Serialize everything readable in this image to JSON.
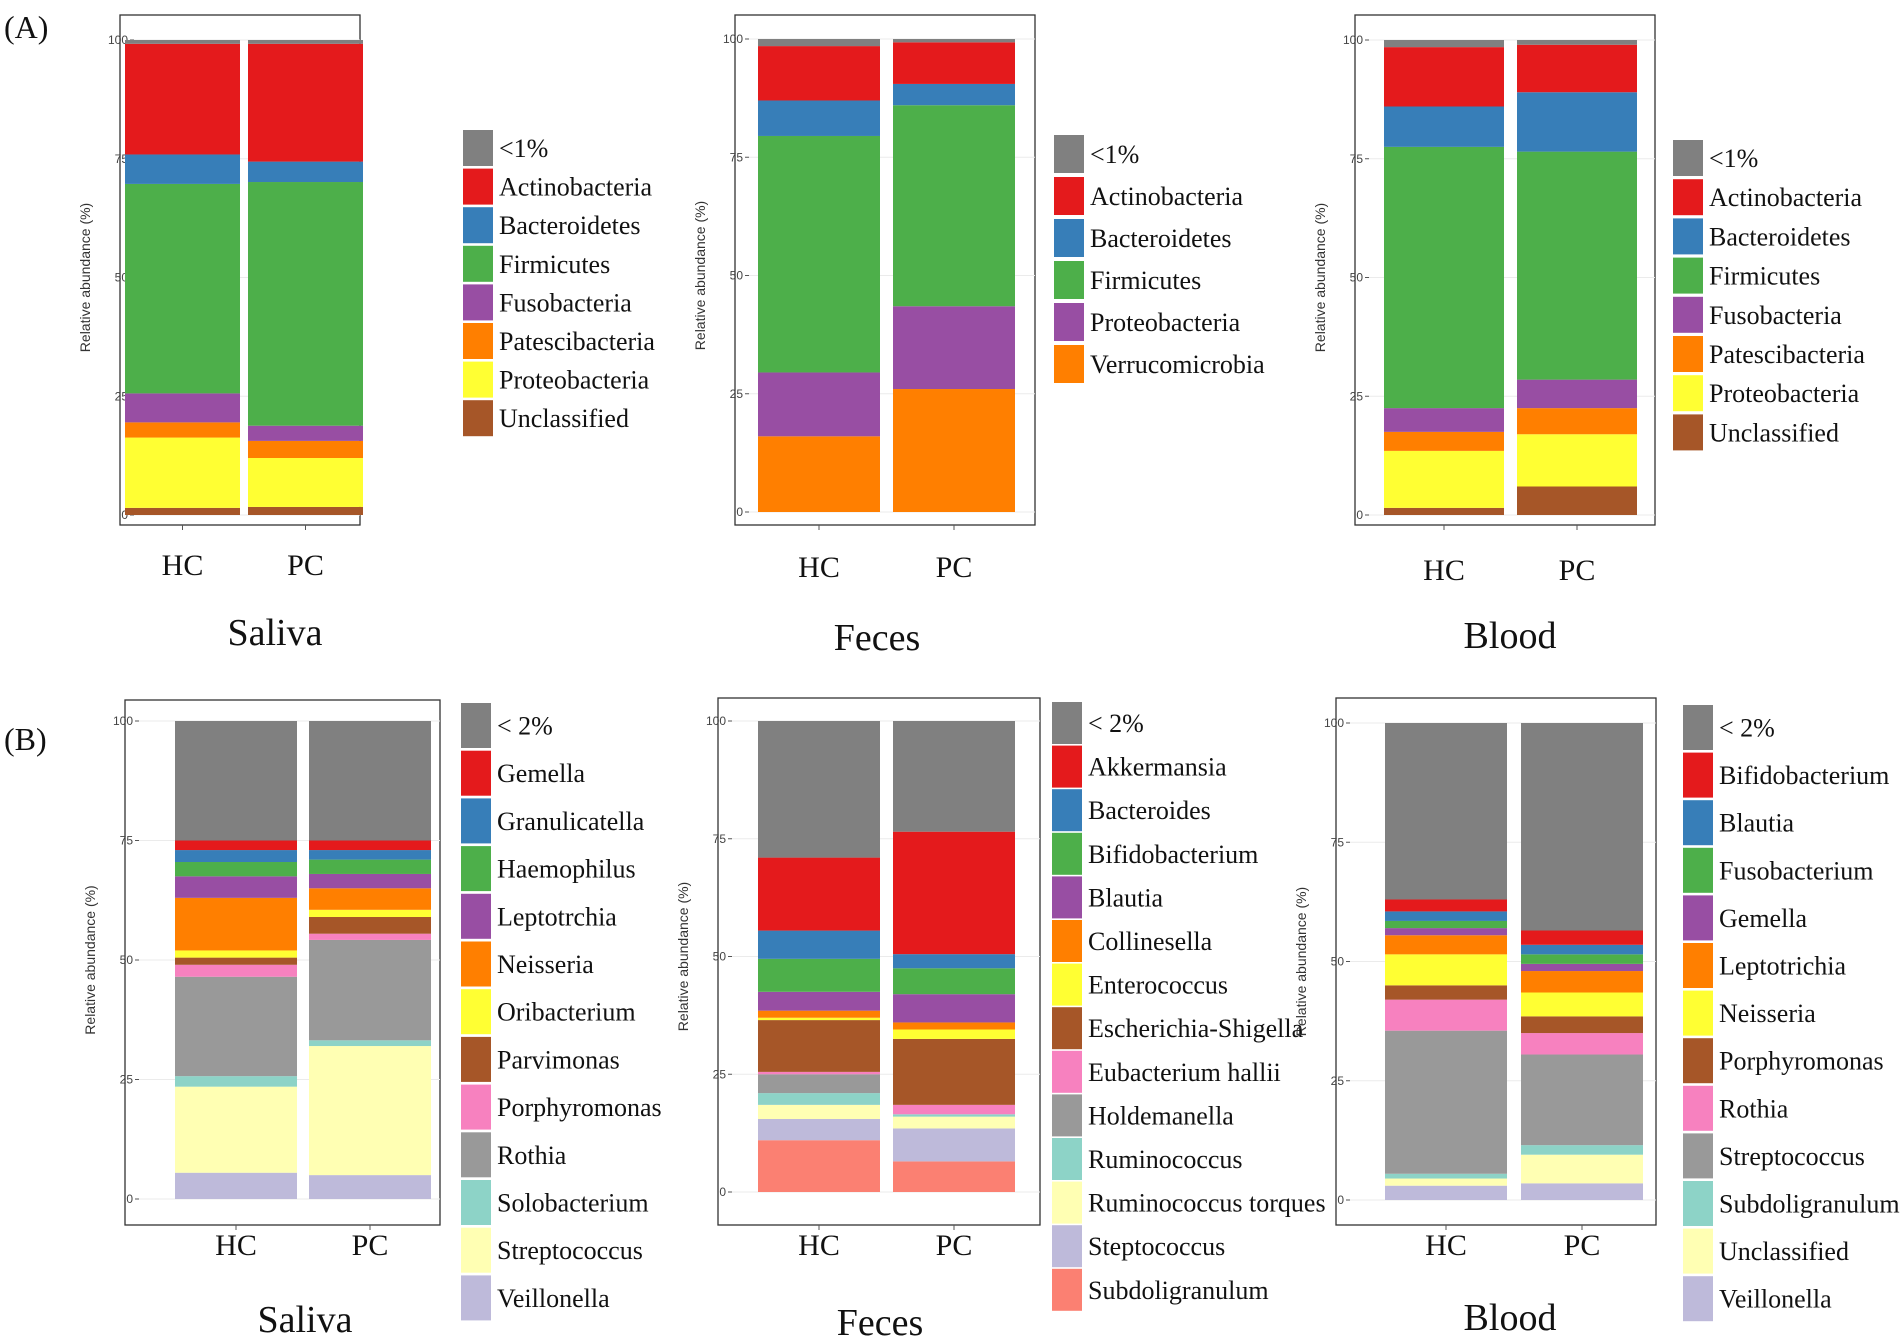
{
  "panel_labels": [
    "(A)",
    "(B)"
  ],
  "chart_data": [
    {
      "type": "bar",
      "stacked": true,
      "row": "A",
      "title": "Saliva",
      "ylabel": "Relative abundance (%)",
      "categories": [
        "HC",
        "PC"
      ],
      "yticks": [
        0,
        25,
        50,
        75,
        100
      ],
      "ylim": [
        0,
        100
      ],
      "series": [
        {
          "name": "Unclassified",
          "color": "#a65628",
          "values": [
            1.5,
            1.7
          ]
        },
        {
          "name": "Proteobacteria",
          "color": "#ffff33",
          "values": [
            14.8,
            10.3
          ]
        },
        {
          "name": "Patescibacteria",
          "color": "#ff7f00",
          "values": [
            3.2,
            3.6
          ]
        },
        {
          "name": "Fusobacteria",
          "color": "#984ea3",
          "values": [
            6.1,
            3.2
          ]
        },
        {
          "name": "Firmicutes",
          "color": "#4daf4a",
          "values": [
            44.1,
            51.3
          ]
        },
        {
          "name": "Bacteroidetes",
          "color": "#377eb8",
          "values": [
            6.2,
            4.3
          ]
        },
        {
          "name": "Actinobacteria",
          "color": "#e41a1c",
          "values": [
            23.3,
            24.8
          ]
        },
        {
          "name": "<1%",
          "color": "#808080",
          "values": [
            0.8,
            0.8
          ]
        }
      ],
      "legend": [
        "<1%",
        "Actinobacteria",
        "Bacteroidetes",
        "Firmicutes",
        "Fusobacteria",
        "Patescibacteria",
        "Proteobacteria",
        "Unclassified"
      ]
    },
    {
      "type": "bar",
      "stacked": true,
      "row": "A",
      "title": "Feces",
      "ylabel": "Relative abundance (%)",
      "categories": [
        "HC",
        "PC"
      ],
      "yticks": [
        0,
        25,
        50,
        75,
        100
      ],
      "ylim": [
        0,
        100
      ],
      "series": [
        {
          "name": "Verrucomicrobia",
          "color": "#ff7f00",
          "values": [
            16.0,
            26.0
          ]
        },
        {
          "name": "Proteobacteria",
          "color": "#984ea3",
          "values": [
            13.5,
            17.5
          ]
        },
        {
          "name": "Firmicutes",
          "color": "#4daf4a",
          "values": [
            50.0,
            42.5
          ]
        },
        {
          "name": "Bacteroidetes",
          "color": "#377eb8",
          "values": [
            7.5,
            4.5
          ]
        },
        {
          "name": "Actinobacteria",
          "color": "#e41a1c",
          "values": [
            11.5,
            8.8
          ]
        },
        {
          "name": "<1%",
          "color": "#808080",
          "values": [
            1.5,
            0.7
          ]
        }
      ],
      "legend": [
        "<1%",
        "Actinobacteria",
        "Bacteroidetes",
        "Firmicutes",
        "Proteobacteria",
        "Verrucomicrobia"
      ]
    },
    {
      "type": "bar",
      "stacked": true,
      "row": "A",
      "title": "Blood",
      "ylabel": "Relative abundance (%)",
      "categories": [
        "HC",
        "PC"
      ],
      "yticks": [
        0,
        25,
        50,
        75,
        100
      ],
      "ylim": [
        0,
        100
      ],
      "series": [
        {
          "name": "Unclassified",
          "color": "#a65628",
          "values": [
            1.5,
            6.0
          ]
        },
        {
          "name": "Proteobacteria",
          "color": "#ffff33",
          "values": [
            12.0,
            11.0
          ]
        },
        {
          "name": "Patescibacteria",
          "color": "#ff7f00",
          "values": [
            4.0,
            5.5
          ]
        },
        {
          "name": "Fusobacteria",
          "color": "#984ea3",
          "values": [
            5.0,
            6.0
          ]
        },
        {
          "name": "Firmicutes",
          "color": "#4daf4a",
          "values": [
            55.0,
            48.0
          ]
        },
        {
          "name": "Bacteroidetes",
          "color": "#377eb8",
          "values": [
            8.5,
            12.5
          ]
        },
        {
          "name": "Actinobacteria",
          "color": "#e41a1c",
          "values": [
            12.5,
            10.0
          ]
        },
        {
          "name": "<1%",
          "color": "#808080",
          "values": [
            1.5,
            1.0
          ]
        }
      ],
      "legend": [
        "<1%",
        "Actinobacteria",
        "Bacteroidetes",
        "Firmicutes",
        "Fusobacteria",
        "Patescibacteria",
        "Proteobacteria",
        "Unclassified"
      ]
    },
    {
      "type": "bar",
      "stacked": true,
      "row": "B",
      "title": "Saliva",
      "ylabel": "Relative abundance (%)",
      "categories": [
        "HC",
        "PC"
      ],
      "yticks": [
        0,
        25,
        50,
        75,
        100
      ],
      "ylim": [
        0,
        100
      ],
      "series": [
        {
          "name": "Veillonella",
          "color": "#bebada",
          "values": [
            5.5,
            5.0
          ]
        },
        {
          "name": "Streptococcus",
          "color": "#ffffb3",
          "values": [
            18.0,
            27.0
          ]
        },
        {
          "name": "Solobacterium",
          "color": "#8dd3c7",
          "values": [
            2.2,
            1.2
          ]
        },
        {
          "name": "Rothia",
          "color": "#999999",
          "values": [
            20.8,
            21.0
          ]
        },
        {
          "name": "Porphyromonas",
          "color": "#f781bf",
          "values": [
            2.5,
            1.3
          ]
        },
        {
          "name": "Parvimonas",
          "color": "#a65628",
          "values": [
            1.5,
            3.5
          ]
        },
        {
          "name": "Oribacterium",
          "color": "#ffff33",
          "values": [
            1.5,
            1.5
          ]
        },
        {
          "name": "Neisseria",
          "color": "#ff7f00",
          "values": [
            11.0,
            4.5
          ]
        },
        {
          "name": "Leptotrchia",
          "color": "#984ea3",
          "values": [
            4.5,
            3.0
          ]
        },
        {
          "name": "Haemophilus",
          "color": "#4daf4a",
          "values": [
            3.0,
            3.0
          ]
        },
        {
          "name": "Granulicatella",
          "color": "#377eb8",
          "values": [
            2.5,
            2.0
          ]
        },
        {
          "name": "Gemella",
          "color": "#e41a1c",
          "values": [
            2.0,
            2.0
          ]
        },
        {
          "name": "< 2%",
          "color": "#808080",
          "values": [
            25.0,
            25.0
          ]
        }
      ],
      "legend": [
        "< 2%",
        "Gemella",
        "Granulicatella",
        "Haemophilus",
        "Leptotrchia",
        "Neisseria",
        "Oribacterium",
        "Parvimonas",
        "Porphyromonas",
        "Rothia",
        "Solobacterium",
        "Streptococcus",
        "Veillonella"
      ]
    },
    {
      "type": "bar",
      "stacked": true,
      "row": "B",
      "title": "Feces",
      "ylabel": "Relative abundance (%)",
      "categories": [
        "HC",
        "PC"
      ],
      "yticks": [
        0,
        25,
        50,
        75,
        100
      ],
      "ylim": [
        0,
        100
      ],
      "series": [
        {
          "name": "Subdoligranulum",
          "color": "#fb8072",
          "values": [
            11.0,
            6.5
          ]
        },
        {
          "name": "Steptococcus",
          "color": "#bebada",
          "values": [
            4.5,
            7.0
          ]
        },
        {
          "name": "Ruminococcus torques",
          "color": "#ffffb3",
          "values": [
            3.0,
            2.5
          ]
        },
        {
          "name": "Ruminococcus",
          "color": "#8dd3c7",
          "values": [
            2.5,
            0.5
          ]
        },
        {
          "name": "Holdemanella",
          "color": "#999999",
          "values": [
            4.0,
            0.0
          ]
        },
        {
          "name": "Eubacterium hallii",
          "color": "#f781bf",
          "values": [
            0.5,
            2.0
          ]
        },
        {
          "name": "Escherichia-Shigella",
          "color": "#a65628",
          "values": [
            11.0,
            14.0
          ]
        },
        {
          "name": "Enterococcus",
          "color": "#ffff33",
          "values": [
            0.5,
            2.0
          ]
        },
        {
          "name": "Collinesella",
          "color": "#ff7f00",
          "values": [
            1.5,
            1.5
          ]
        },
        {
          "name": "Blautia",
          "color": "#984ea3",
          "values": [
            4.0,
            6.0
          ]
        },
        {
          "name": "Bifidobacterium",
          "color": "#4daf4a",
          "values": [
            7.0,
            5.5
          ]
        },
        {
          "name": "Bacteroides",
          "color": "#377eb8",
          "values": [
            6.0,
            3.0
          ]
        },
        {
          "name": "Akkermansia",
          "color": "#e41a1c",
          "values": [
            15.5,
            26.0
          ]
        },
        {
          "name": "< 2%",
          "color": "#808080",
          "values": [
            29.0,
            23.5
          ]
        }
      ],
      "legend": [
        "< 2%",
        "Akkermansia",
        "Bacteroides",
        "Bifidobacterium",
        "Blautia",
        "Collinesella",
        "Enterococcus",
        "Escherichia-Shigella",
        "Eubacterium hallii",
        "Holdemanella",
        "Ruminococcus",
        "Ruminococcus torques",
        "Steptococcus",
        "Subdoligranulum"
      ]
    },
    {
      "type": "bar",
      "stacked": true,
      "row": "B",
      "title": "Blood",
      "ylabel": "Relative abundance (%)",
      "categories": [
        "HC",
        "PC"
      ],
      "yticks": [
        0,
        25,
        50,
        75,
        100
      ],
      "ylim": [
        0,
        100
      ],
      "series": [
        {
          "name": "Veillonella",
          "color": "#bebada",
          "values": [
            3.0,
            3.5
          ]
        },
        {
          "name": "Unclassified",
          "color": "#ffffb3",
          "values": [
            1.5,
            6.0
          ]
        },
        {
          "name": "Subdoligranulum",
          "color": "#8dd3c7",
          "values": [
            1.0,
            2.0
          ]
        },
        {
          "name": "Streptococcus",
          "color": "#999999",
          "values": [
            30.0,
            19.0
          ]
        },
        {
          "name": "Rothia",
          "color": "#f781bf",
          "values": [
            6.5,
            4.5
          ]
        },
        {
          "name": "Porphyromonas",
          "color": "#a65628",
          "values": [
            3.0,
            3.5
          ]
        },
        {
          "name": "Neisseria",
          "color": "#ffff33",
          "values": [
            6.5,
            5.0
          ]
        },
        {
          "name": "Leptotrichia",
          "color": "#ff7f00",
          "values": [
            4.0,
            4.5
          ]
        },
        {
          "name": "Gemella",
          "color": "#984ea3",
          "values": [
            1.5,
            1.5
          ]
        },
        {
          "name": "Fusobacterium",
          "color": "#4daf4a",
          "values": [
            1.5,
            2.0
          ]
        },
        {
          "name": "Blautia",
          "color": "#377eb8",
          "values": [
            2.0,
            2.0
          ]
        },
        {
          "name": "Bifidobacterium",
          "color": "#e41a1c",
          "values": [
            2.5,
            3.0
          ]
        },
        {
          "name": "< 2%",
          "color": "#808080",
          "values": [
            37.0,
            43.5
          ]
        }
      ],
      "legend": [
        "< 2%",
        "Bifidobacterium",
        "Blautia",
        "Fusobacterium",
        "Gemella",
        "Leptotrichia",
        "Neisseria",
        "Porphyromonas",
        "Rothia",
        "Streptococcus",
        "Subdoligranulum",
        "Unclassified",
        "Veillonella"
      ]
    }
  ]
}
